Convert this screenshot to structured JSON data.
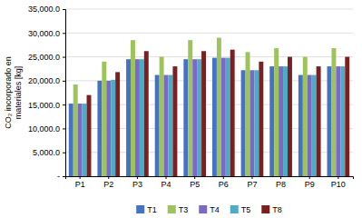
{
  "chart_data": {
    "type": "bar",
    "ylabel": "CO₂ incorporado en\nmateriales [kg]",
    "categories": [
      "P1",
      "P2",
      "P3",
      "P4",
      "P5",
      "P6",
      "P7",
      "P8",
      "P9",
      "P10"
    ],
    "series": [
      {
        "name": "T1",
        "color": "#4472C4",
        "values": [
          15200,
          20000,
          24500,
          21200,
          24500,
          24800,
          22200,
          23000,
          21200,
          23000
        ]
      },
      {
        "name": "T3",
        "color": "#9DC45A",
        "values": [
          19200,
          24000,
          28500,
          25000,
          28500,
          29000,
          26000,
          26800,
          25000,
          26800
        ]
      },
      {
        "name": "T4",
        "color": "#7B68C8",
        "values": [
          15200,
          20000,
          24500,
          21200,
          24500,
          24800,
          22200,
          23000,
          21200,
          23000
        ]
      },
      {
        "name": "T5",
        "color": "#4BACC6",
        "values": [
          15200,
          20200,
          24500,
          21200,
          24500,
          24800,
          22200,
          23000,
          21200,
          23000
        ]
      },
      {
        "name": "T8",
        "color": "#7B2020",
        "values": [
          17000,
          21800,
          26200,
          23000,
          26200,
          26500,
          24000,
          25000,
          23000,
          25000
        ]
      }
    ],
    "ylim": [
      0,
      35000
    ],
    "yticks": [
      {
        "value": 0,
        "label": "-"
      },
      {
        "value": 5000,
        "label": "5,000.0"
      },
      {
        "value": 10000,
        "label": "10,000.0"
      },
      {
        "value": 15000,
        "label": "15,000.0"
      },
      {
        "value": 20000,
        "label": "20,000.0"
      },
      {
        "value": 25000,
        "label": "25,000.0"
      },
      {
        "value": 30000,
        "label": "30,000.0"
      },
      {
        "value": 35000,
        "label": "35,000.0"
      }
    ],
    "grid": true,
    "legend": "bottom"
  }
}
